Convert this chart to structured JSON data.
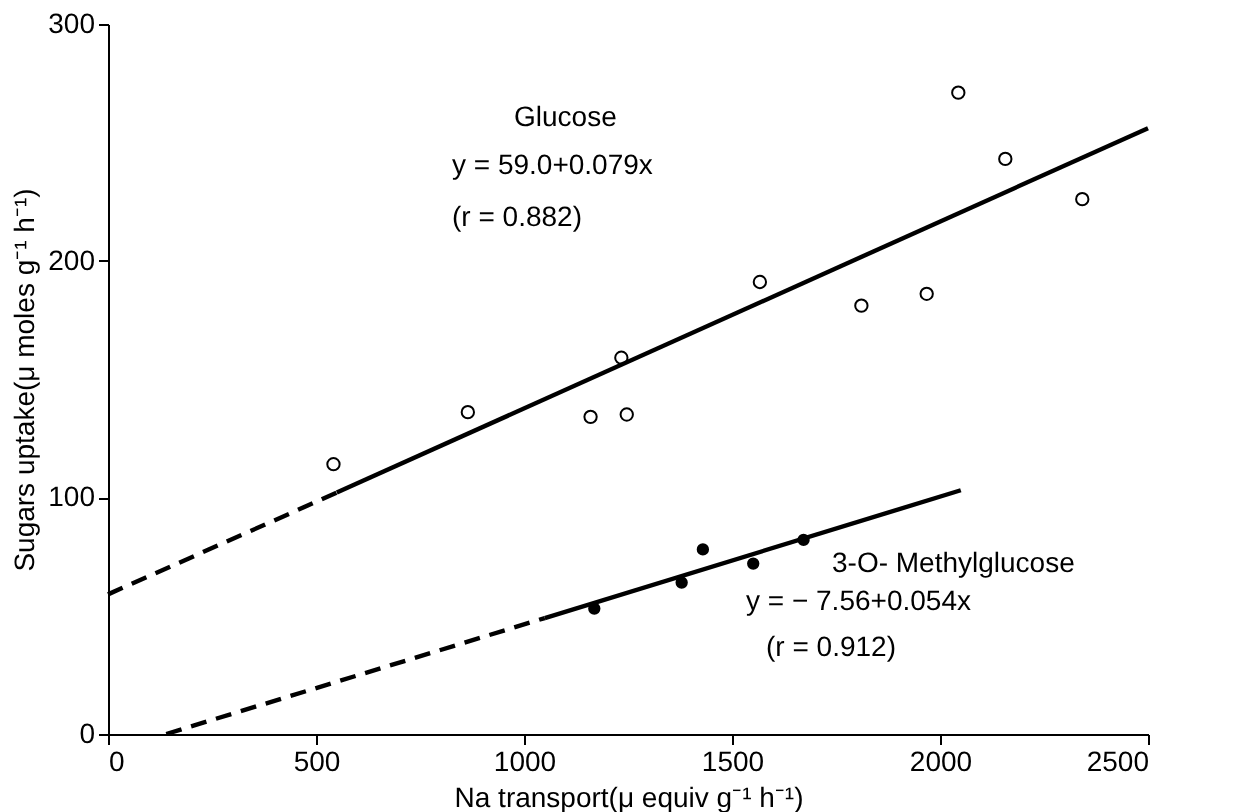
{
  "chart_data": {
    "type": "scatter",
    "xlabel": "Na transport(μ equiv g⁻¹ h⁻¹)",
    "ylabel": "Sugars uptake(μ moles g⁻¹ h⁻¹)",
    "xlim": [
      0,
      2500
    ],
    "xticks": [
      0,
      500,
      1000,
      1500,
      2000,
      2500
    ],
    "ylim": [
      0,
      300
    ],
    "yticks": [
      0,
      100,
      200,
      300
    ],
    "grid": false,
    "series": [
      {
        "marker": "circle",
        "color": "#000000",
        "x": [
          542,
          865,
          1160,
          1234,
          1247,
          1567,
          1811,
          1968,
          2044,
          2157,
          2342
        ],
        "values": [
          114,
          136,
          134,
          159,
          135,
          191,
          181,
          186,
          271,
          243,
          226
        ]
      },
      {
        "marker": "circle",
        "color": "#000000",
        "x": [
          1169,
          1379,
          1430,
          1551,
          1672
        ],
        "values": [
          53,
          64,
          78,
          72,
          82
        ]
      },
      {
        "type": "line",
        "line_style": "dashed",
        "color": "#000000",
        "x": [
          0,
          550
        ],
        "values": [
          59,
          102
        ]
      },
      {
        "type": "line",
        "line_style": "solid",
        "color": "#000000",
        "x": [
          550,
          2500
        ],
        "values": [
          102,
          256
        ]
      },
      {
        "type": "line",
        "line_style": "dashed",
        "color": "#000000",
        "x": [
          140,
          1050
        ],
        "values": [
          0,
          49
        ]
      },
      {
        "type": "line",
        "line_style": "solid",
        "color": "#000000",
        "x": [
          1050,
          2050
        ],
        "values": [
          49,
          103
        ]
      }
    ],
    "annotations": [
      "Glucose",
      "y = 59.0+0.079x",
      "(r = 0.882)",
      "3-O- Methylglucose",
      "y = − 7.56+0.054x",
      "(r = 0.912)"
    ]
  }
}
